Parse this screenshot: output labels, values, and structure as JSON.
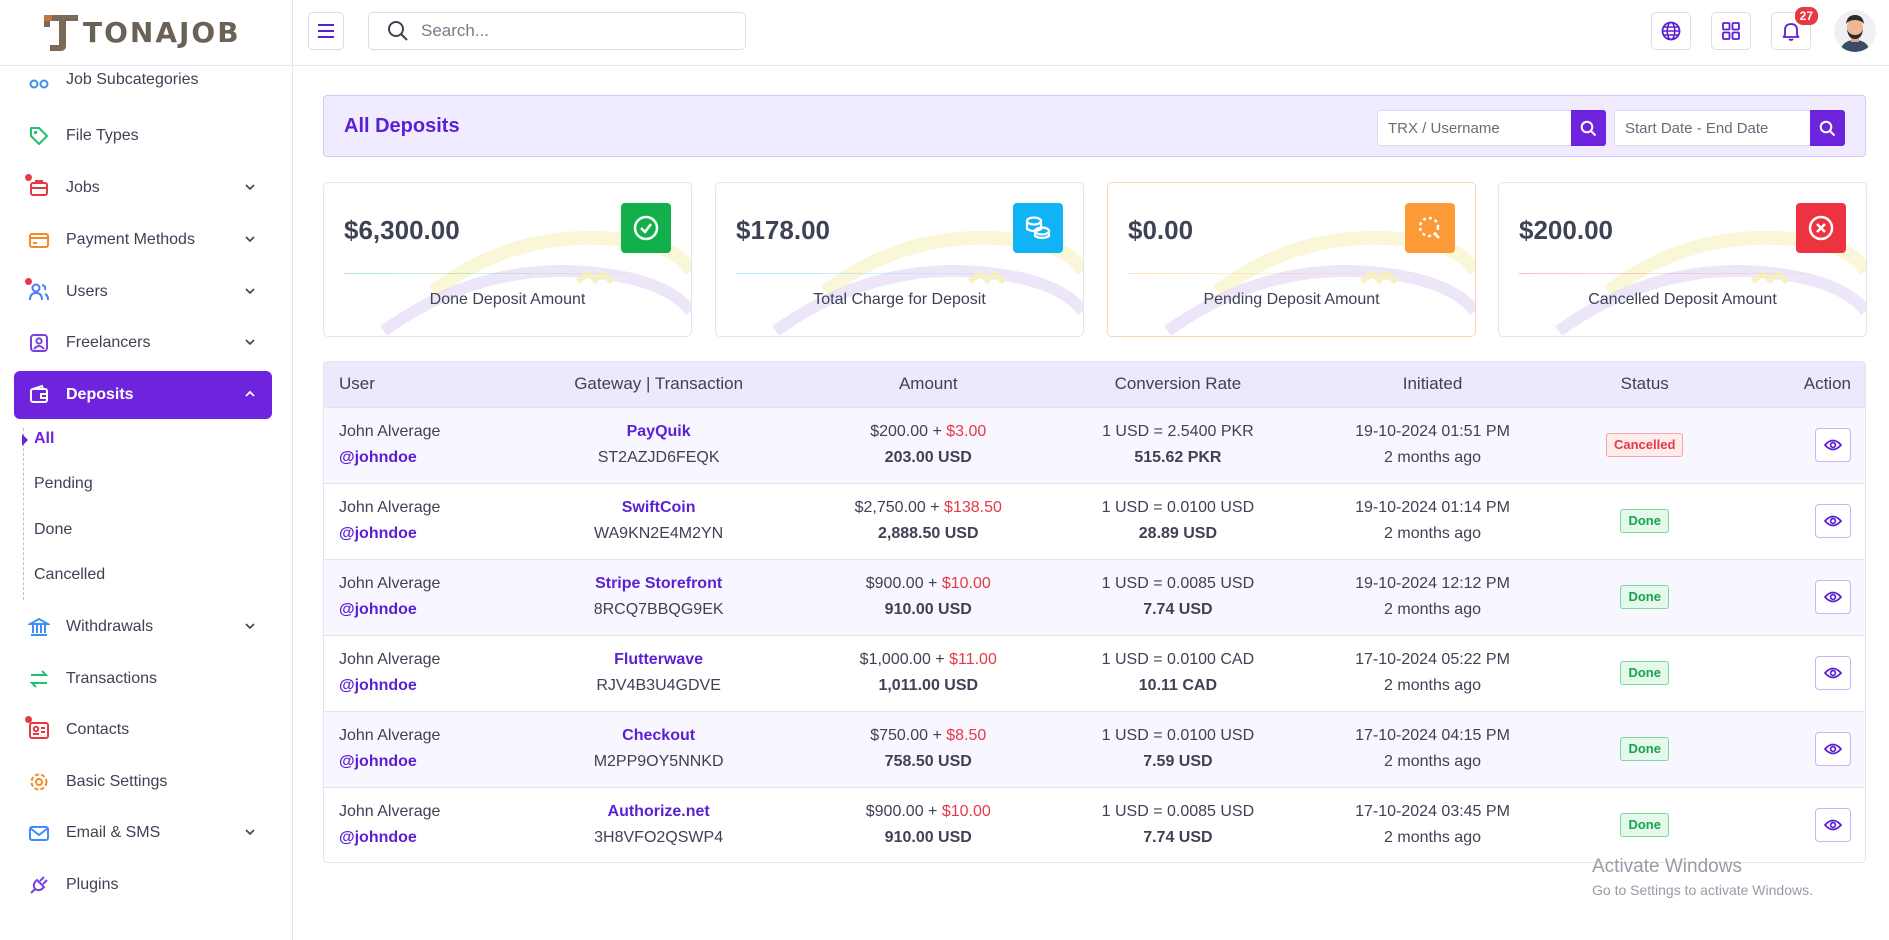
{
  "brand": {
    "name": "TONAJOB"
  },
  "topbar": {
    "search_placeholder": "Search...",
    "notification_count": "27"
  },
  "sidebar": {
    "items": [
      {
        "label": "Job Subcategories"
      },
      {
        "label": "File Types"
      },
      {
        "label": "Jobs"
      },
      {
        "label": "Payment Methods"
      },
      {
        "label": "Users"
      },
      {
        "label": "Freelancers"
      },
      {
        "label": "Deposits"
      },
      {
        "label": "Withdrawals"
      },
      {
        "label": "Transactions"
      },
      {
        "label": "Contacts"
      },
      {
        "label": "Basic Settings"
      },
      {
        "label": "Email & SMS"
      },
      {
        "label": "Plugins"
      }
    ],
    "deposit_sub": [
      {
        "label": "All"
      },
      {
        "label": "Pending"
      },
      {
        "label": "Done"
      },
      {
        "label": "Cancelled"
      }
    ]
  },
  "page": {
    "title": "All Deposits",
    "filter_trx_placeholder": "TRX / Username",
    "filter_date_placeholder": "Start Date - End Date"
  },
  "cards": [
    {
      "amount": "$6,300.00",
      "label": "Done Deposit Amount",
      "color": "#12b04a"
    },
    {
      "amount": "$178.00",
      "label": "Total Charge for Deposit",
      "color": "#10b4f4"
    },
    {
      "amount": "$0.00",
      "label": "Pending Deposit Amount",
      "color": "#fb9a37"
    },
    {
      "amount": "$200.00",
      "label": "Cancelled Deposit Amount",
      "color": "#ee3340"
    }
  ],
  "table": {
    "headers": [
      "User",
      "Gateway | Transaction",
      "Amount",
      "Conversion Rate",
      "Initiated",
      "Status",
      "Action"
    ],
    "rows": [
      {
        "name": "John Alverage",
        "handle": "@johndoe",
        "gateway": "PayQuik",
        "trx": "ST2AZJD6FEQK",
        "amount": "$200.00",
        "sep": " + ",
        "charge": "$3.00",
        "total": "203.00 USD",
        "rate": "1 USD = 2.5400 PKR",
        "converted": "515.62 PKR",
        "date": "19-10-2024 01:51 PM",
        "ago": "2 months ago",
        "status": "Cancelled"
      },
      {
        "name": "John Alverage",
        "handle": "@johndoe",
        "gateway": "SwiftCoin",
        "trx": "WA9KN2E4M2YN",
        "amount": "$2,750.00",
        "sep": " + ",
        "charge": "$138.50",
        "total": "2,888.50 USD",
        "rate": "1 USD = 0.0100 USD",
        "converted": "28.89 USD",
        "date": "19-10-2024 01:14 PM",
        "ago": "2 months ago",
        "status": "Done"
      },
      {
        "name": "John Alverage",
        "handle": "@johndoe",
        "gateway": "Stripe Storefront",
        "trx": "8RCQ7BBQG9EK",
        "amount": "$900.00",
        "sep": " + ",
        "charge": "$10.00",
        "total": "910.00 USD",
        "rate": "1 USD = 0.0085 USD",
        "converted": "7.74 USD",
        "date": "19-10-2024 12:12 PM",
        "ago": "2 months ago",
        "status": "Done"
      },
      {
        "name": "John Alverage",
        "handle": "@johndoe",
        "gateway": "Flutterwave",
        "trx": "RJV4B3U4GDVE",
        "amount": "$1,000.00",
        "sep": " + ",
        "charge": "$11.00",
        "total": "1,011.00 USD",
        "rate": "1 USD = 0.0100 CAD",
        "converted": "10.11 CAD",
        "date": "17-10-2024 05:22 PM",
        "ago": "2 months ago",
        "status": "Done"
      },
      {
        "name": "John Alverage",
        "handle": "@johndoe",
        "gateway": "Checkout",
        "trx": "M2PP9OY5NNKD",
        "amount": "$750.00",
        "sep": " + ",
        "charge": "$8.50",
        "total": "758.50 USD",
        "rate": "1 USD = 0.0100 USD",
        "converted": "7.59 USD",
        "date": "17-10-2024 04:15 PM",
        "ago": "2 months ago",
        "status": "Done"
      },
      {
        "name": "John Alverage",
        "handle": "@johndoe",
        "gateway": "Authorize.net",
        "trx": "3H8VFO2QSWP4",
        "amount": "$900.00",
        "sep": " + ",
        "charge": "$10.00",
        "total": "910.00 USD",
        "rate": "1 USD = 0.0085 USD",
        "converted": "7.74 USD",
        "date": "17-10-2024 03:45 PM",
        "ago": "2 months ago",
        "status": "Done"
      }
    ]
  },
  "watermark": {
    "line1": "Activate Windows",
    "line2": "Go to Settings to activate Windows."
  },
  "colors": {
    "accent": "#6e23dd",
    "danger": "#e53945",
    "success": "#18a34a"
  }
}
